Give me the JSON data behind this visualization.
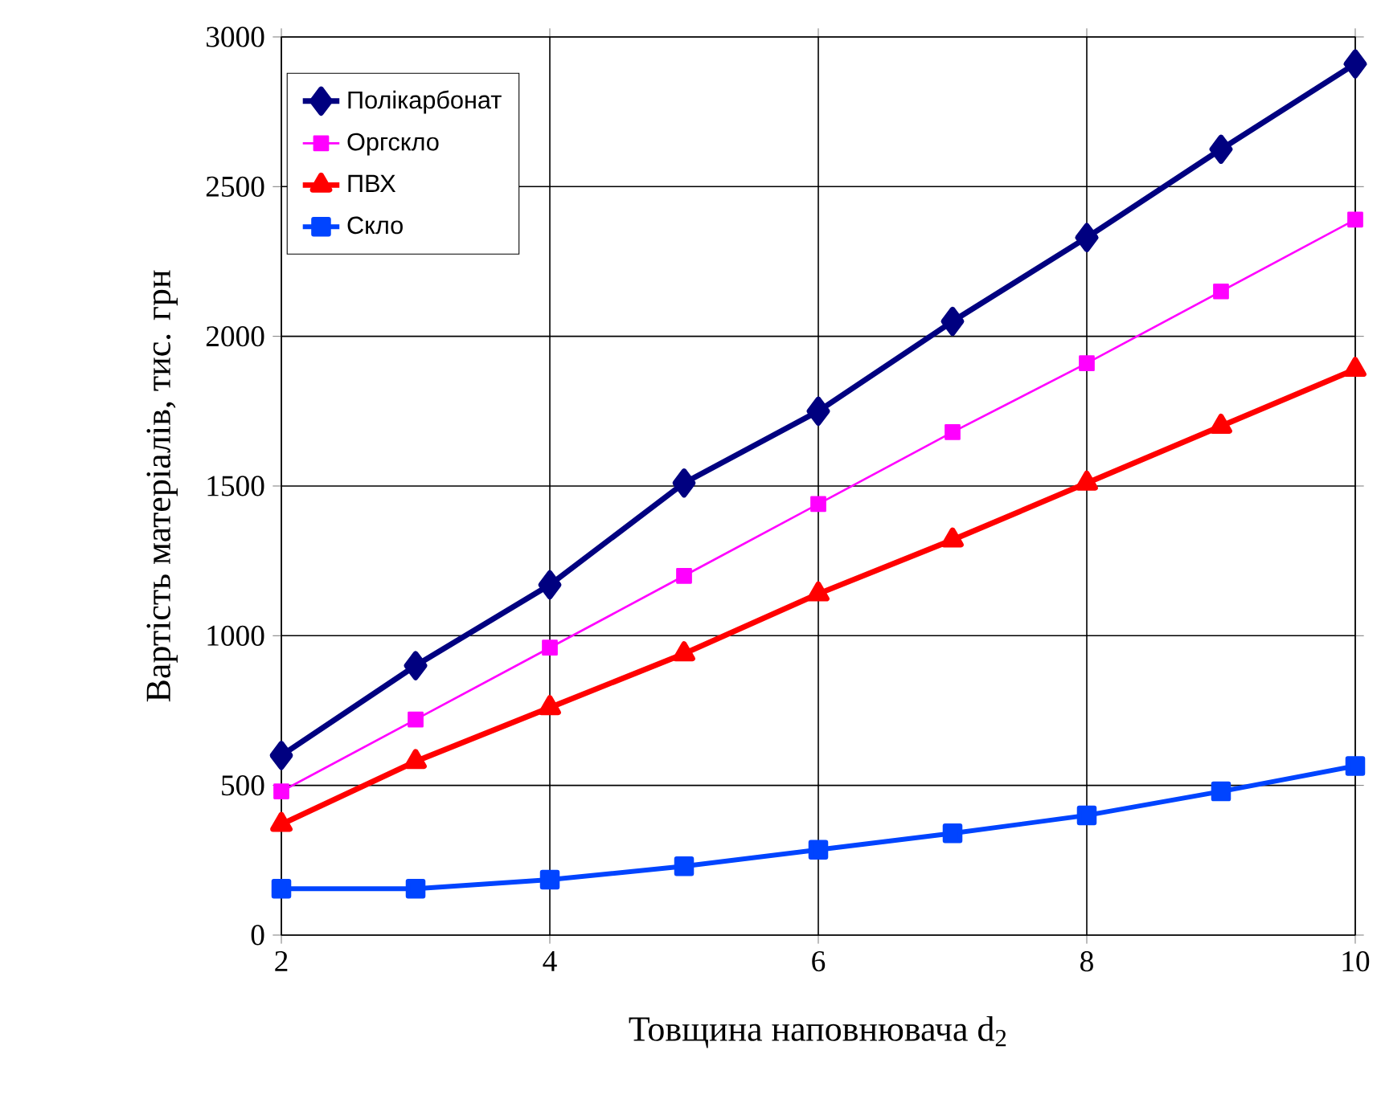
{
  "chart_data": {
    "type": "line",
    "xlabel": "Товщина наповнювача d$_{2}$",
    "ylabel": "Вартість матеріалів, тис. грн",
    "x": [
      2,
      3,
      4,
      5,
      6,
      7,
      8,
      9,
      10
    ],
    "series": [
      {
        "name": "Полікарбонат",
        "color": "#000080",
        "marker": "diamond",
        "values": [
          600,
          900,
          1170,
          1510,
          1750,
          2050,
          2330,
          2625,
          2910
        ]
      },
      {
        "name": "Оргскло",
        "color": "#ff00ff",
        "marker": "square",
        "values": [
          480,
          720,
          960,
          1200,
          1440,
          1680,
          1910,
          2150,
          2390
        ]
      },
      {
        "name": "ПВХ",
        "color": "#ff0000",
        "marker": "triangle",
        "values": [
          370,
          580,
          760,
          940,
          1140,
          1320,
          1510,
          1700,
          1890
        ]
      },
      {
        "name": "Скло",
        "color": "#0044ff",
        "marker": "square",
        "values": [
          155,
          155,
          185,
          230,
          285,
          340,
          400,
          480,
          565
        ]
      }
    ],
    "xlim": [
      2,
      10
    ],
    "ylim": [
      0,
      3000
    ],
    "xticks": [
      2,
      4,
      6,
      8,
      10
    ],
    "yticks": [
      0,
      500,
      1000,
      1500,
      2000,
      2500,
      3000
    ],
    "grid": true,
    "legend": "top left",
    "line_style": "solid"
  }
}
